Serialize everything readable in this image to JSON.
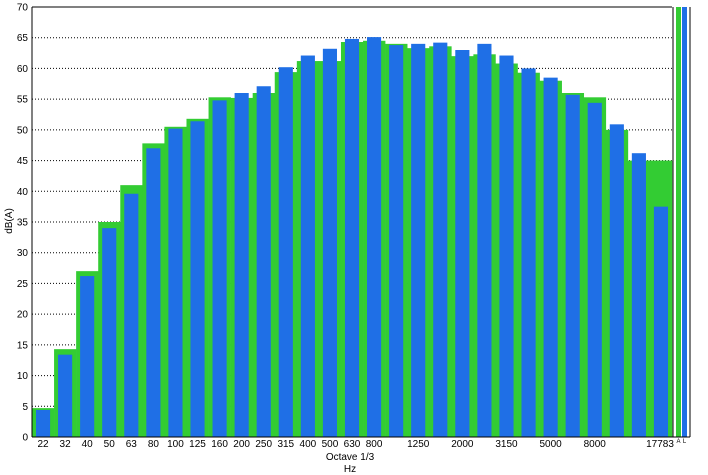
{
  "chart_data": {
    "type": "bar",
    "xlabel": "Octave 1/3",
    "xunit": "Hz",
    "ylabel": "dB(A)",
    "ylim": [
      0,
      70
    ],
    "yticks": [
      0,
      5,
      10,
      15,
      20,
      25,
      30,
      35,
      40,
      45,
      50,
      55,
      60,
      65,
      70
    ],
    "grid": true,
    "categories": [
      "22",
      "32",
      "40",
      "50",
      "63",
      "80",
      "100",
      "125",
      "160",
      "200",
      "250",
      "315",
      "400",
      "500",
      "630",
      "800",
      "1000",
      "1250",
      "1600",
      "2000",
      "2500",
      "3150",
      "4000",
      "5000",
      "6300",
      "8000",
      "10000",
      "12500",
      "17783"
    ],
    "visible_tick_labels": [
      "22",
      "32",
      "40",
      "50",
      "63",
      "80",
      "100",
      "125",
      "160",
      "200",
      "250",
      "315",
      "400",
      "500",
      "630",
      "800",
      "1250",
      "2000",
      "3150",
      "5000",
      "8000",
      "17783"
    ],
    "series": [
      {
        "color": "#33cc33",
        "values": [
          4.7,
          14.3,
          27.0,
          35.0,
          41.0,
          47.8,
          50.5,
          51.8,
          55.3,
          55.2,
          56.0,
          59.4,
          61.2,
          61.2,
          64.3,
          64.5,
          64.0,
          63.3,
          63.6,
          62.0,
          62.3,
          60.8,
          59.3,
          58.0,
          56.0,
          55.3,
          50.0,
          45.0,
          45.0
        ]
      },
      {
        "color": "#1f6fe6",
        "values": [
          4.4,
          13.4,
          26.2,
          34.0,
          39.6,
          47.0,
          50.2,
          51.4,
          54.8,
          56.0,
          57.1,
          60.2,
          62.1,
          63.2,
          64.8,
          65.1,
          63.8,
          64.0,
          64.2,
          63.0,
          64.0,
          62.1,
          60.0,
          58.5,
          55.7,
          54.4,
          50.9,
          46.2,
          37.5
        ]
      }
    ],
    "trailing_bars": [
      {
        "label": "A",
        "color": "#33cc33",
        "value": 70
      },
      {
        "label": "L",
        "color": "#1f6fe6",
        "value": 70
      }
    ]
  }
}
